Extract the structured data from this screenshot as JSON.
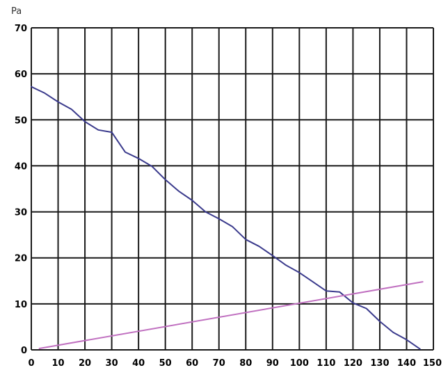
{
  "chart_data": {
    "type": "line",
    "title": "",
    "xlabel": "",
    "ylabel": "Pa",
    "xlim": [
      0,
      150
    ],
    "ylim": [
      0,
      70
    ],
    "x_ticks": [
      0,
      10,
      20,
      30,
      40,
      50,
      60,
      70,
      80,
      90,
      100,
      110,
      120,
      130,
      140,
      150
    ],
    "y_ticks": [
      0,
      10,
      20,
      30,
      40,
      50,
      60,
      70
    ],
    "x_tick_labels": [
      "0",
      "10",
      "20",
      "30",
      "40",
      "50",
      "60",
      "70",
      "80",
      "90",
      "100",
      "110",
      "120",
      "130",
      "140",
      "150"
    ],
    "y_tick_labels": [
      "0",
      "10",
      "20",
      "30",
      "40",
      "50",
      "60",
      "70"
    ],
    "grid": true,
    "legend": "none",
    "series": [
      {
        "color": "#3a3a8c",
        "x": [
          0,
          5,
          10,
          15,
          20,
          25,
          30,
          35,
          40,
          45,
          50,
          55,
          60,
          65,
          70,
          75,
          80,
          85,
          90,
          95,
          100,
          105,
          110,
          115,
          120,
          125,
          130,
          135,
          140,
          145
        ],
        "y": [
          57.2,
          55.8,
          53.9,
          52.3,
          49.6,
          47.8,
          47.3,
          43.0,
          41.6,
          39.9,
          37.0,
          34.5,
          32.5,
          30.0,
          28.5,
          26.8,
          24.0,
          22.5,
          20.5,
          18.4,
          16.8,
          14.8,
          12.8,
          12.6,
          10.2,
          9.0,
          6.2,
          3.8,
          2.2,
          0.2
        ]
      },
      {
        "color": "#c070c0",
        "x": [
          3,
          146
        ],
        "y": [
          0.3,
          14.8
        ]
      }
    ]
  }
}
